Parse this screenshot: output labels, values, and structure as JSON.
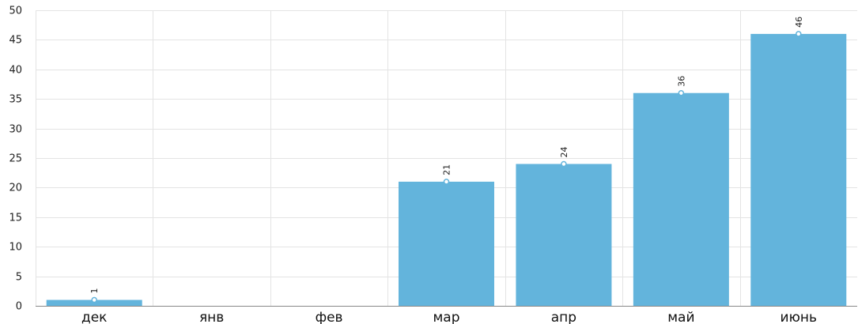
{
  "chart_data": {
    "type": "bar",
    "categories": [
      "дек",
      "янв",
      "фев",
      "мар",
      "апр",
      "май",
      "июнь"
    ],
    "values": [
      1,
      0,
      0,
      21,
      24,
      36,
      46
    ],
    "data_labels": [
      "1",
      "",
      "",
      "21",
      "24",
      "36",
      "46"
    ],
    "ylim": [
      0,
      50
    ],
    "yticks": [
      0,
      5,
      10,
      15,
      20,
      25,
      30,
      35,
      40,
      45,
      50
    ],
    "title": "",
    "xlabel": "",
    "ylabel": "",
    "grid": true,
    "colors": {
      "bar": "#63b4dc",
      "grid": "#e4e4e4",
      "axis": "#888888",
      "marker_fill": "#ffffff"
    }
  }
}
